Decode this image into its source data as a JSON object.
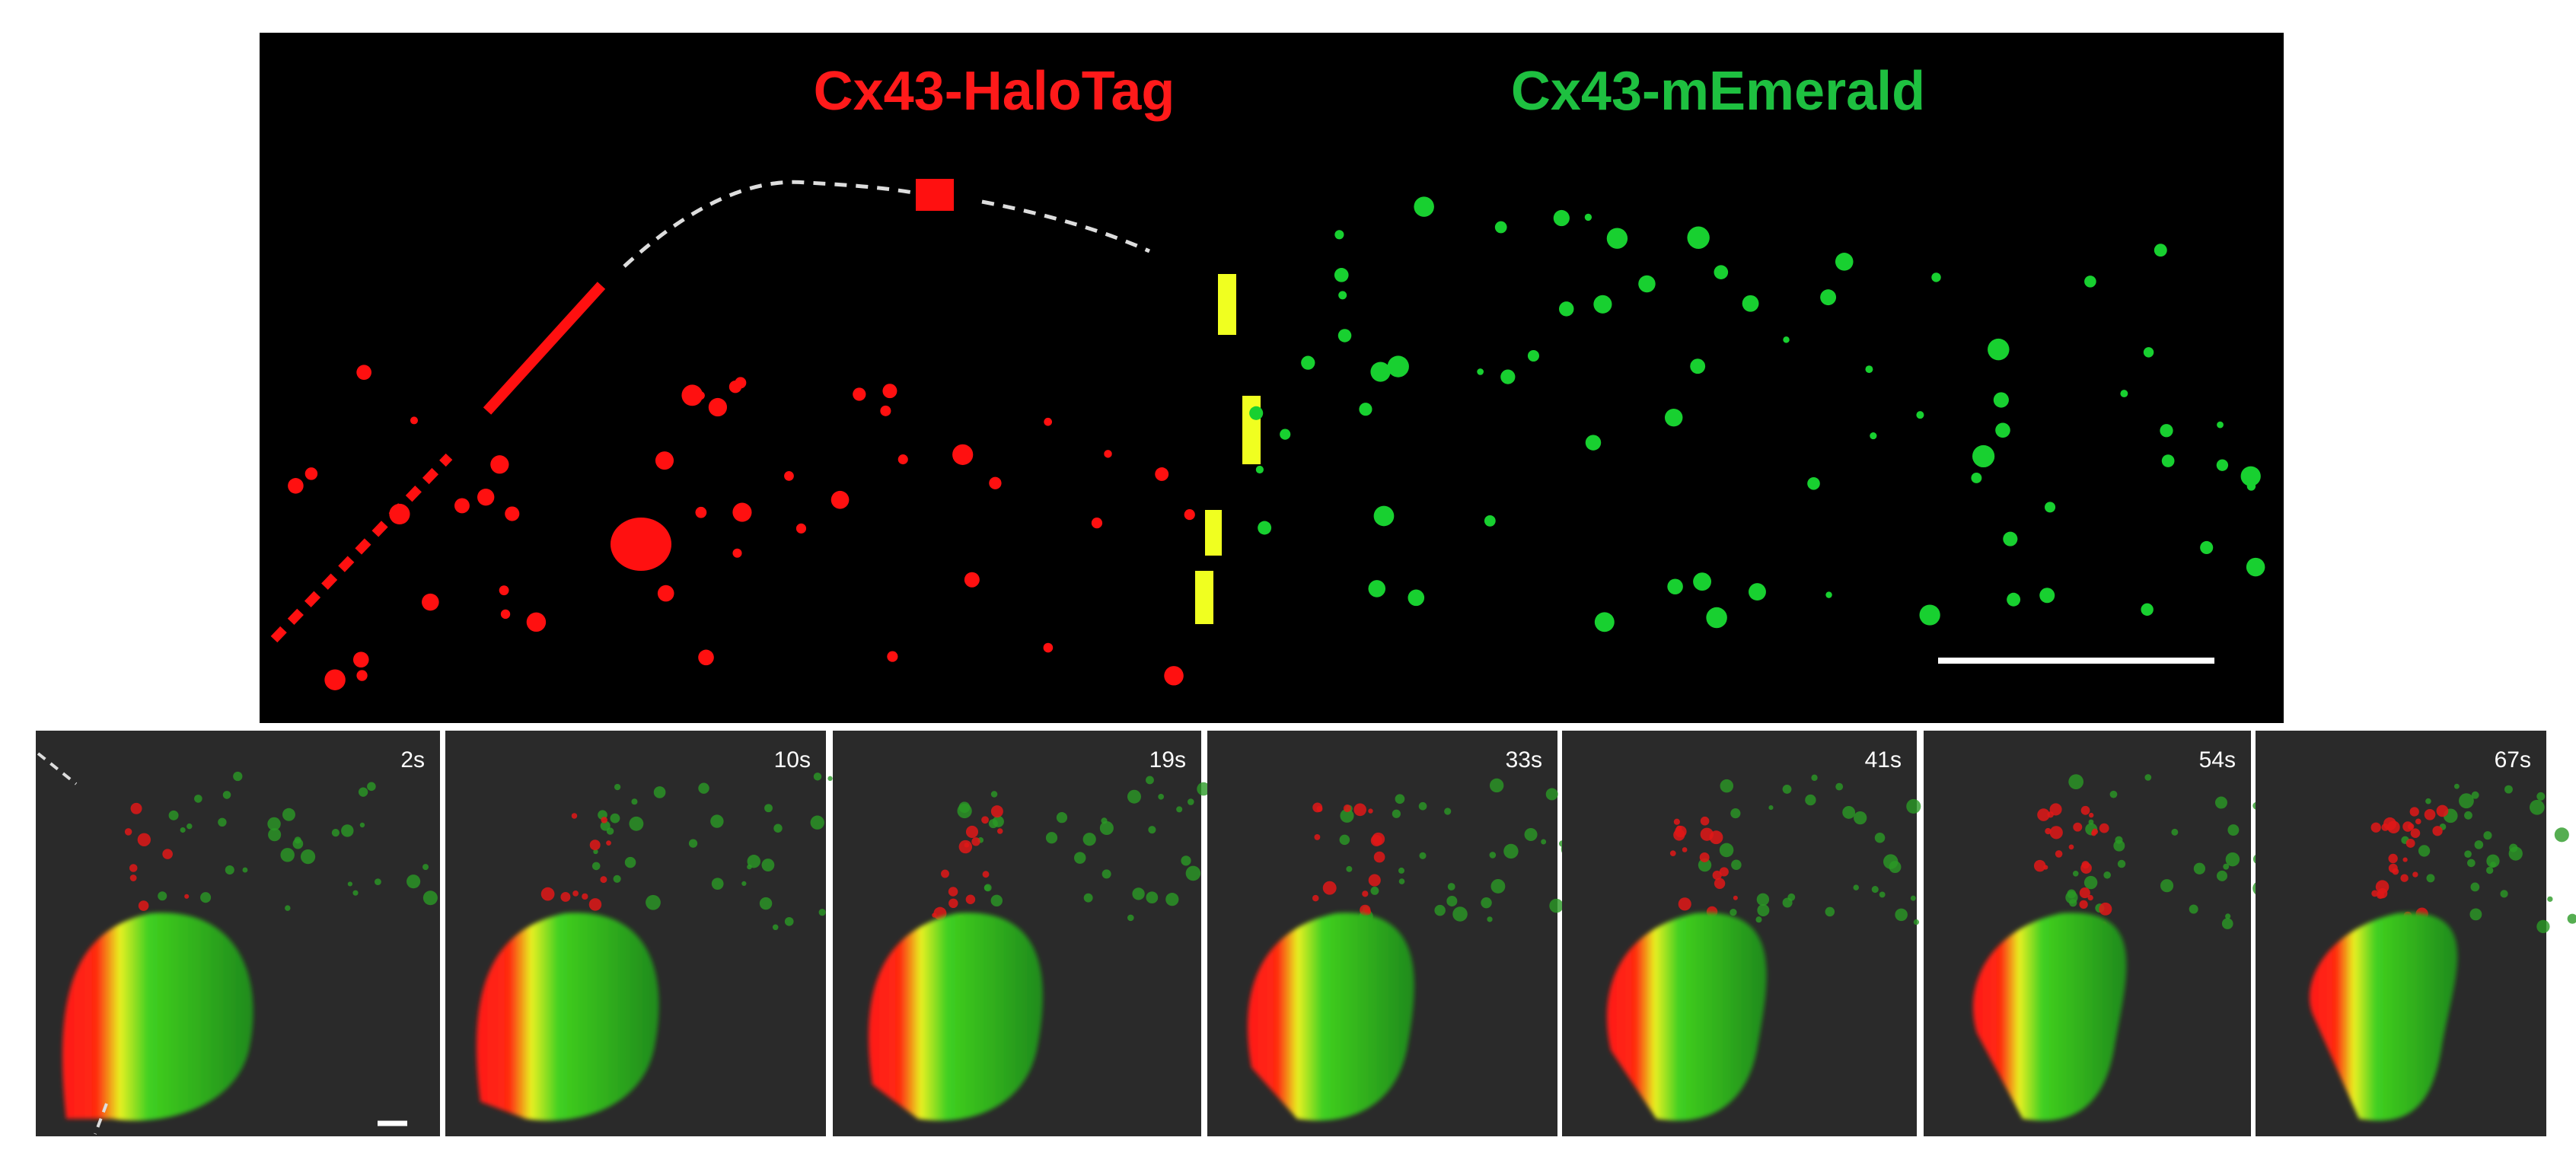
{
  "header": {
    "left_label": "Cx43-HaloTag",
    "right_label": "Cx43-mEmerald"
  },
  "panels": [
    {
      "time": "2s"
    },
    {
      "time": "10s"
    },
    {
      "time": "19s"
    },
    {
      "time": "33s"
    },
    {
      "time": "41s"
    },
    {
      "time": "54s"
    },
    {
      "time": "67s"
    }
  ]
}
